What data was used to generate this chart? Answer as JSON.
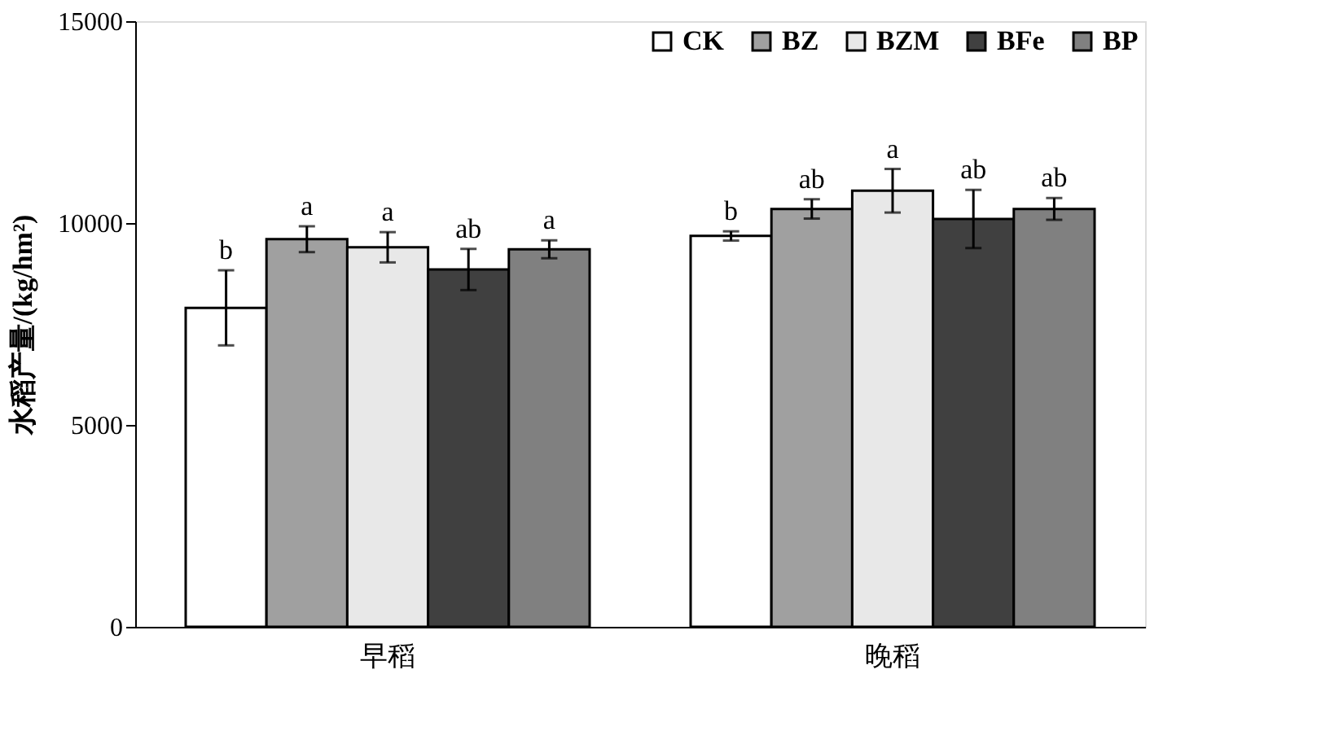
{
  "chart_data": {
    "type": "bar",
    "ylabel": "水稻产量/(kg/hm²)",
    "categories": [
      "早稻",
      "晚稻"
    ],
    "series": [
      {
        "name": "CK",
        "color": "#ffffff",
        "values": [
          7900,
          9680
        ],
        "errors": [
          930,
          115
        ],
        "value_labels": [
          "b",
          "b"
        ]
      },
      {
        "name": "BZ",
        "color": "#a0a0a0",
        "values": [
          9600,
          10350
        ],
        "errors": [
          320,
          240
        ],
        "value_labels": [
          "a",
          "ab"
        ]
      },
      {
        "name": "BZM",
        "color": "#e8e8e8",
        "values": [
          9400,
          10800
        ],
        "errors": [
          375,
          540
        ],
        "value_labels": [
          "a",
          "a"
        ]
      },
      {
        "name": "BFe",
        "color": "#404040",
        "values": [
          8850,
          10100
        ],
        "errors": [
          510,
          720
        ],
        "value_labels": [
          "ab",
          "ab"
        ]
      },
      {
        "name": "BP",
        "color": "#808080",
        "values": [
          9350,
          10350
        ],
        "errors": [
          220,
          270
        ],
        "value_labels": [
          "a",
          "ab"
        ]
      }
    ],
    "ylim": [
      0,
      15000
    ],
    "yticks": [
      0,
      5000,
      10000,
      15000
    ],
    "grid": false,
    "legend": "top right"
  }
}
